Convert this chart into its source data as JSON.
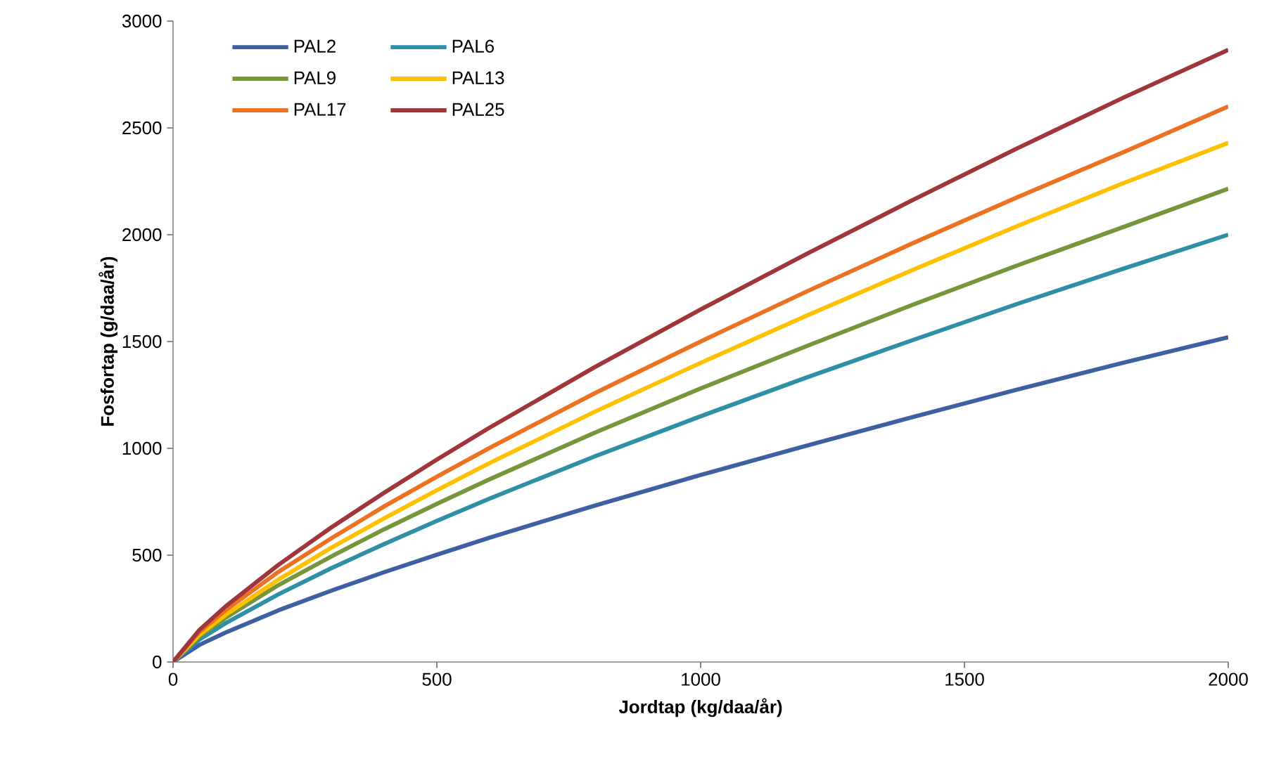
{
  "chart_data": {
    "type": "line",
    "xlabel": "Jordtap (kg/daa/år)",
    "ylabel": "Fosfortap (g/daa/år)",
    "x": [
      0,
      50,
      100,
      200,
      300,
      400,
      500,
      600,
      800,
      1000,
      1200,
      1400,
      1600,
      1800,
      2000
    ],
    "series": [
      {
        "name": "PAL2",
        "color": "#3f60a0",
        "values": [
          0,
          80,
          138,
          242,
          334,
          420,
          502,
          582,
          732,
          875,
          1012,
          1145,
          1275,
          1400,
          1520
        ]
      },
      {
        "name": "PAL6",
        "color": "#2e8fa6",
        "values": [
          0,
          105,
          182,
          317,
          439,
          552,
          660,
          765,
          963,
          1150,
          1331,
          1505,
          1676,
          1840,
          2000
        ]
      },
      {
        "name": "PAL9",
        "color": "#76963c",
        "values": [
          0,
          120,
          207,
          360,
          494,
          621,
          740,
          855,
          1074,
          1280,
          1478,
          1670,
          1856,
          2035,
          2215
        ]
      },
      {
        "name": "PAL13",
        "color": "#ffc000",
        "values": [
          0,
          127,
          221,
          386,
          535,
          672,
          804,
          931,
          1172,
          1400,
          1620,
          1833,
          2040,
          2240,
          2430
        ]
      },
      {
        "name": "PAL17",
        "color": "#ec7221",
        "values": [
          0,
          141,
          243,
          422,
          579,
          728,
          867,
          1002,
          1259,
          1500,
          1733,
          1958,
          2175,
          2385,
          2600
        ]
      },
      {
        "name": "PAL25",
        "color": "#a0353a",
        "values": [
          0,
          150,
          261,
          455,
          630,
          792,
          947,
          1097,
          1381,
          1650,
          1909,
          2160,
          2404,
          2640,
          2865
        ]
      }
    ],
    "xlim": [
      0,
      2000
    ],
    "xticks": [
      0,
      500,
      1000,
      1500,
      2000
    ],
    "ylim": [
      0,
      3000
    ],
    "yticks": [
      0,
      500,
      1000,
      1500,
      2000,
      2500,
      3000
    ],
    "legend": "top left"
  }
}
